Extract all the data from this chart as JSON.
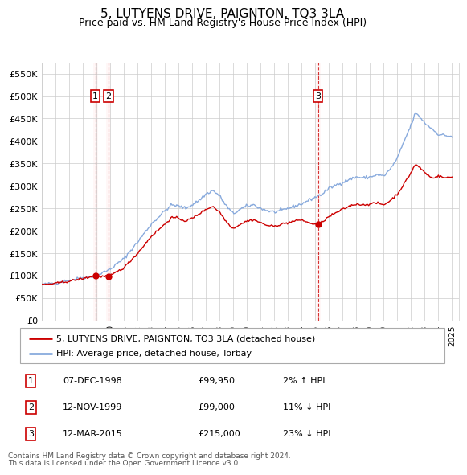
{
  "title": "5, LUTYENS DRIVE, PAIGNTON, TQ3 3LA",
  "subtitle": "Price paid vs. HM Land Registry's House Price Index (HPI)",
  "title_fontsize": 11,
  "subtitle_fontsize": 9,
  "ylabel_values": [
    "£0",
    "£50K",
    "£100K",
    "£150K",
    "£200K",
    "£250K",
    "£300K",
    "£350K",
    "£400K",
    "£450K",
    "£500K",
    "£550K"
  ],
  "yticks": [
    0,
    50000,
    100000,
    150000,
    200000,
    250000,
    300000,
    350000,
    400000,
    450000,
    500000,
    550000
  ],
  "ylim": [
    0,
    575000
  ],
  "xlim_start": 1995.0,
  "xlim_end": 2025.5,
  "transactions": [
    {
      "id": 1,
      "date": "07-DEC-1998",
      "price": 99950,
      "year": 1998.92,
      "hpi_pct": "2% ↑ HPI"
    },
    {
      "id": 2,
      "date": "12-NOV-1999",
      "price": 99000,
      "year": 1999.87,
      "hpi_pct": "11% ↓ HPI"
    },
    {
      "id": 3,
      "date": "12-MAR-2015",
      "price": 215000,
      "year": 2015.19,
      "hpi_pct": "23% ↓ HPI"
    }
  ],
  "legend_property": "5, LUTYENS DRIVE, PAIGNTON, TQ3 3LA (detached house)",
  "legend_hpi": "HPI: Average price, detached house, Torbay",
  "red_color": "#cc0000",
  "blue_color": "#88aadd",
  "marker_color": "#cc0000",
  "dashed_color": "#cc0000",
  "shade_color": "#ffcccc",
  "footnote1": "Contains HM Land Registry data © Crown copyright and database right 2024.",
  "footnote2": "This data is licensed under the Open Government Licence v3.0.",
  "xtick_years": [
    1995,
    1996,
    1997,
    1998,
    1999,
    2000,
    2001,
    2002,
    2003,
    2004,
    2005,
    2006,
    2007,
    2008,
    2009,
    2010,
    2011,
    2012,
    2013,
    2014,
    2015,
    2016,
    2017,
    2018,
    2019,
    2020,
    2021,
    2022,
    2023,
    2024,
    2025
  ],
  "hpi_anchors": [
    [
      1995.0,
      80000
    ],
    [
      1996.0,
      84000
    ],
    [
      1997.0,
      90000
    ],
    [
      1998.0,
      96000
    ],
    [
      1999.0,
      100000
    ],
    [
      2000.0,
      115000
    ],
    [
      2001.0,
      138000
    ],
    [
      2002.0,
      175000
    ],
    [
      2003.0,
      215000
    ],
    [
      2004.0,
      245000
    ],
    [
      2004.5,
      258000
    ],
    [
      2005.0,
      255000
    ],
    [
      2005.5,
      250000
    ],
    [
      2006.0,
      258000
    ],
    [
      2006.5,
      268000
    ],
    [
      2007.0,
      282000
    ],
    [
      2007.5,
      290000
    ],
    [
      2008.0,
      278000
    ],
    [
      2008.5,
      255000
    ],
    [
      2009.0,
      238000
    ],
    [
      2009.5,
      248000
    ],
    [
      2010.0,
      255000
    ],
    [
      2010.5,
      258000
    ],
    [
      2011.0,
      250000
    ],
    [
      2011.5,
      245000
    ],
    [
      2012.0,
      242000
    ],
    [
      2012.5,
      245000
    ],
    [
      2013.0,
      250000
    ],
    [
      2013.5,
      255000
    ],
    [
      2014.0,
      260000
    ],
    [
      2014.5,
      268000
    ],
    [
      2015.0,
      275000
    ],
    [
      2015.5,
      282000
    ],
    [
      2016.0,
      295000
    ],
    [
      2016.5,
      302000
    ],
    [
      2017.0,
      308000
    ],
    [
      2017.5,
      315000
    ],
    [
      2018.0,
      320000
    ],
    [
      2018.5,
      318000
    ],
    [
      2019.0,
      320000
    ],
    [
      2019.5,
      325000
    ],
    [
      2020.0,
      322000
    ],
    [
      2020.5,
      338000
    ],
    [
      2021.0,
      362000
    ],
    [
      2021.5,
      400000
    ],
    [
      2022.0,
      435000
    ],
    [
      2022.3,
      462000
    ],
    [
      2022.6,
      455000
    ],
    [
      2023.0,
      440000
    ],
    [
      2023.5,
      428000
    ],
    [
      2024.0,
      415000
    ],
    [
      2024.5,
      412000
    ],
    [
      2025.0,
      410000
    ]
  ],
  "prop_anchors": [
    [
      1995.0,
      80000
    ],
    [
      1996.0,
      83000
    ],
    [
      1997.0,
      88000
    ],
    [
      1998.0,
      94000
    ],
    [
      1998.92,
      99950
    ],
    [
      1999.0,
      98500
    ],
    [
      1999.87,
      99000
    ],
    [
      2000.0,
      100000
    ],
    [
      2001.0,
      118000
    ],
    [
      2002.0,
      150000
    ],
    [
      2003.0,
      188000
    ],
    [
      2004.0,
      215000
    ],
    [
      2004.5,
      230000
    ],
    [
      2005.0,
      228000
    ],
    [
      2005.5,
      222000
    ],
    [
      2006.0,
      228000
    ],
    [
      2006.5,
      238000
    ],
    [
      2007.0,
      248000
    ],
    [
      2007.5,
      255000
    ],
    [
      2008.0,
      242000
    ],
    [
      2008.5,
      220000
    ],
    [
      2009.0,
      205000
    ],
    [
      2009.5,
      215000
    ],
    [
      2010.0,
      222000
    ],
    [
      2010.5,
      225000
    ],
    [
      2011.0,
      218000
    ],
    [
      2011.5,
      212000
    ],
    [
      2012.0,
      210000
    ],
    [
      2012.5,
      215000
    ],
    [
      2013.0,
      218000
    ],
    [
      2013.5,
      222000
    ],
    [
      2014.0,
      225000
    ],
    [
      2014.5,
      218000
    ],
    [
      2015.0,
      215000
    ],
    [
      2015.19,
      215000
    ],
    [
      2015.5,
      220000
    ],
    [
      2016.0,
      232000
    ],
    [
      2016.5,
      240000
    ],
    [
      2017.0,
      248000
    ],
    [
      2017.5,
      255000
    ],
    [
      2018.0,
      260000
    ],
    [
      2018.5,
      258000
    ],
    [
      2019.0,
      260000
    ],
    [
      2019.5,
      262000
    ],
    [
      2020.0,
      258000
    ],
    [
      2020.5,
      268000
    ],
    [
      2021.0,
      282000
    ],
    [
      2021.5,
      305000
    ],
    [
      2022.0,
      330000
    ],
    [
      2022.3,
      348000
    ],
    [
      2022.6,
      342000
    ],
    [
      2023.0,
      330000
    ],
    [
      2023.5,
      318000
    ],
    [
      2024.0,
      322000
    ],
    [
      2024.5,
      318000
    ],
    [
      2025.0,
      320000
    ]
  ]
}
